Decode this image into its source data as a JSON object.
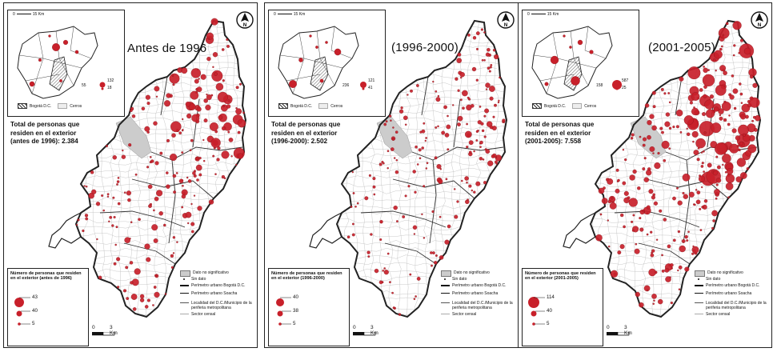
{
  "panels": [
    {
      "id": "pre1996",
      "period": "Antes de 1996",
      "total_text": "Total de personas que\nresiden en el exterior\n(antes de 1996): 2.384",
      "legend_title": "Número de personas que residen en el exterior (antes de 1996)",
      "legend_values": [
        "43",
        "40",
        "5"
      ],
      "inset_values": [
        "132",
        "55",
        "18"
      ],
      "density": 0.75,
      "max_r": 7
    },
    {
      "id": "1996_2000",
      "period": "(1996-2000)",
      "total_text": "Total de personas que\nresiden en el exterior\n(1996-2000): 2.502",
      "legend_title": "Número de personas que residen en el exterior (1996-2000)",
      "legend_values": [
        "40",
        "38",
        "5"
      ],
      "inset_values": [
        "121",
        "236",
        "41"
      ],
      "density": 0.55,
      "max_r": 4.5
    },
    {
      "id": "2001_2005",
      "period": "(2001-2005)",
      "total_text": "Total de personas que\nresiden en el exterior\n(2001-2005): 7.558",
      "legend_title": "Número de personas que residen en el exterior (2001-2005)",
      "legend_values": [
        "114",
        "40",
        "5"
      ],
      "inset_values": [
        "587",
        "158",
        "25"
      ],
      "density": 0.9,
      "max_r": 9
    }
  ],
  "legend": {
    "no_significativo": "Dato no significativo",
    "sin_dato": "Sin dato",
    "perimetro_bogota": "Perímetro urbano Bogotá D.C.",
    "perimetro_soacha": "Perímetro urbano Soacha",
    "localidad": "Localidad del D.C./Municipio de la periferia metropolitana",
    "sector": "Sector censal"
  },
  "inset": {
    "scale_label": "15 Km",
    "scale_zero": "0",
    "bogota_label": "Bogotá D.C.",
    "cerros_label": "Cerros"
  },
  "scale": {
    "zero": "0",
    "label": "3 Km"
  },
  "north_label": "N",
  "colors": {
    "circle": "#c8202a",
    "circle_stroke": "#7a1015",
    "boundary": "#222222",
    "sector": "#bbbbbb",
    "no_data": "#cccccc"
  }
}
